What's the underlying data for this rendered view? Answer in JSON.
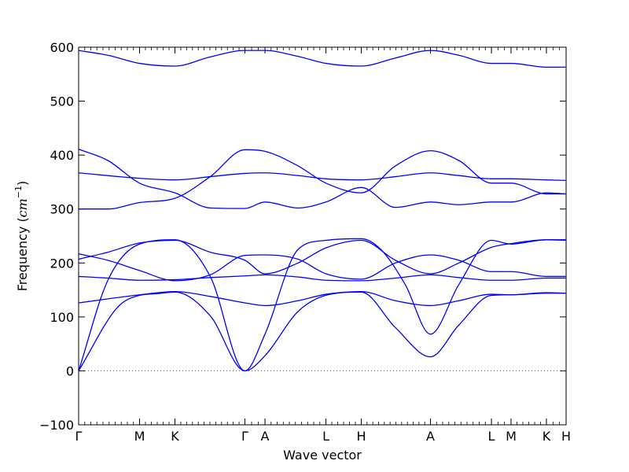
{
  "chart_data": {
    "type": "line",
    "title": "",
    "xlabel": "Wave vector",
    "ylabel_text": "Frequency (",
    "ylabel_unit_base": "cm",
    "ylabel_unit_exp": "−1",
    "ylabel_close": ")",
    "ylim": [
      -100,
      600
    ],
    "yticks": [
      -100,
      0,
      100,
      200,
      300,
      400,
      500,
      600
    ],
    "line_color": "#0000ff",
    "zero_line_color": "#555555",
    "kpoints": [
      {
        "label": "Γ",
        "x": 0.0
      },
      {
        "label": "M",
        "x": 0.125
      },
      {
        "label": "K",
        "x": 0.1976
      },
      {
        "label": "Γ",
        "x": 0.3411
      },
      {
        "label": "A",
        "x": 0.3823
      },
      {
        "label": "L",
        "x": 0.5073
      },
      {
        "label": "H",
        "x": 0.5798
      },
      {
        "label": "A",
        "x": 0.7218
      },
      {
        "label": "L",
        "x": 0.8468
      },
      {
        "label": "M",
        "x": 0.8871
      },
      {
        "label": "K",
        "x": 0.9597
      },
      {
        "label": "H",
        "x": 1.0
      }
    ],
    "series": [
      {
        "x": [
          0,
          0.08,
          0.125,
          0.16,
          0.1976,
          0.27,
          0.3411,
          0.3823,
          0.45,
          0.5073,
          0.5798,
          0.65,
          0.7218,
          0.78,
          0.8468,
          0.8871,
          0.9597,
          1.0
        ],
        "y": [
          0,
          118,
          140,
          143,
          146,
          102,
          0,
          28,
          110,
          140,
          146,
          80,
          26,
          85,
          140,
          141,
          145,
          144
        ]
      },
      {
        "x": [
          0,
          0.06,
          0.125,
          0.1976,
          0.27,
          0.3411,
          0.3823,
          0.45,
          0.5073,
          0.5798,
          0.62,
          0.67,
          0.7218,
          0.78,
          0.8468,
          0.8871,
          0.9597,
          1.0
        ],
        "y": [
          0,
          168,
          235,
          243,
          175,
          0,
          68,
          225,
          242,
          245,
          225,
          160,
          68,
          160,
          242,
          235,
          243,
          242
        ]
      },
      {
        "x": [
          0,
          0.125,
          0.1976,
          0.27,
          0.3411,
          0.3823,
          0.45,
          0.5073,
          0.5798,
          0.65,
          0.7218,
          0.78,
          0.8468,
          0.8871,
          0.9597,
          1.0
        ],
        "y": [
          126,
          141,
          147,
          138,
          126,
          121,
          130,
          142,
          147,
          130,
          121,
          130,
          142,
          141,
          144,
          144
        ]
      },
      {
        "x": [
          0,
          0.06,
          0.125,
          0.1976,
          0.27,
          0.3411,
          0.3823,
          0.45,
          0.5073,
          0.5798,
          0.65,
          0.7218,
          0.78,
          0.8468,
          0.8871,
          0.9597,
          1.0
        ],
        "y": [
          175,
          172,
          168,
          169,
          173,
          176,
          178,
          174,
          168,
          167,
          172,
          178,
          173,
          168,
          168,
          172,
          172
        ]
      },
      {
        "x": [
          0,
          0.06,
          0.125,
          0.1976,
          0.27,
          0.3411,
          0.3823,
          0.45,
          0.5073,
          0.5798,
          0.65,
          0.7218,
          0.78,
          0.8468,
          0.8871,
          0.9597,
          1.0
        ],
        "y": [
          217,
          205,
          186,
          167,
          178,
          214,
          215,
          207,
          180,
          170,
          200,
          215,
          205,
          184,
          184,
          175,
          175
        ]
      },
      {
        "x": [
          0,
          0.06,
          0.125,
          0.1976,
          0.27,
          0.3411,
          0.3823,
          0.45,
          0.5073,
          0.5798,
          0.65,
          0.7218,
          0.78,
          0.8468,
          0.8871,
          0.9597,
          1.0
        ],
        "y": [
          207,
          220,
          237,
          242,
          220,
          205,
          180,
          200,
          228,
          242,
          205,
          180,
          200,
          229,
          236,
          243,
          243
        ]
      },
      {
        "x": [
          0,
          0.06,
          0.125,
          0.1976,
          0.27,
          0.3411,
          0.3823,
          0.45,
          0.5073,
          0.5798,
          0.65,
          0.7218,
          0.78,
          0.8468,
          0.8871,
          0.9597,
          1.0
        ],
        "y": [
          300,
          300,
          312,
          320,
          360,
          410,
          407,
          380,
          348,
          330,
          380,
          408,
          390,
          348,
          348,
          328,
          328
        ]
      },
      {
        "x": [
          0,
          0.06,
          0.125,
          0.1976,
          0.27,
          0.3411,
          0.3823,
          0.45,
          0.5073,
          0.5798,
          0.65,
          0.7218,
          0.78,
          0.8468,
          0.8871,
          0.9597,
          1.0
        ],
        "y": [
          411,
          390,
          348,
          330,
          302,
          301,
          313,
          302,
          313,
          340,
          303,
          313,
          308,
          313,
          313,
          330,
          328
        ]
      },
      {
        "x": [
          0,
          0.125,
          0.1976,
          0.27,
          0.3411,
          0.3823,
          0.45,
          0.5073,
          0.5798,
          0.65,
          0.7218,
          0.78,
          0.8468,
          0.8871,
          0.9597,
          1.0
        ],
        "y": [
          367,
          357,
          354,
          360,
          366,
          367,
          362,
          356,
          354,
          360,
          367,
          362,
          356,
          356,
          354,
          353
        ]
      },
      {
        "x": [
          0,
          0.06,
          0.125,
          0.1976,
          0.27,
          0.3411,
          0.3823,
          0.45,
          0.5073,
          0.5798,
          0.65,
          0.7218,
          0.78,
          0.8468,
          0.8871,
          0.9597,
          1.0
        ],
        "y": [
          594,
          585,
          570,
          565,
          582,
          594,
          594,
          583,
          570,
          565,
          580,
          594,
          585,
          570,
          570,
          563,
          563
        ]
      }
    ]
  }
}
